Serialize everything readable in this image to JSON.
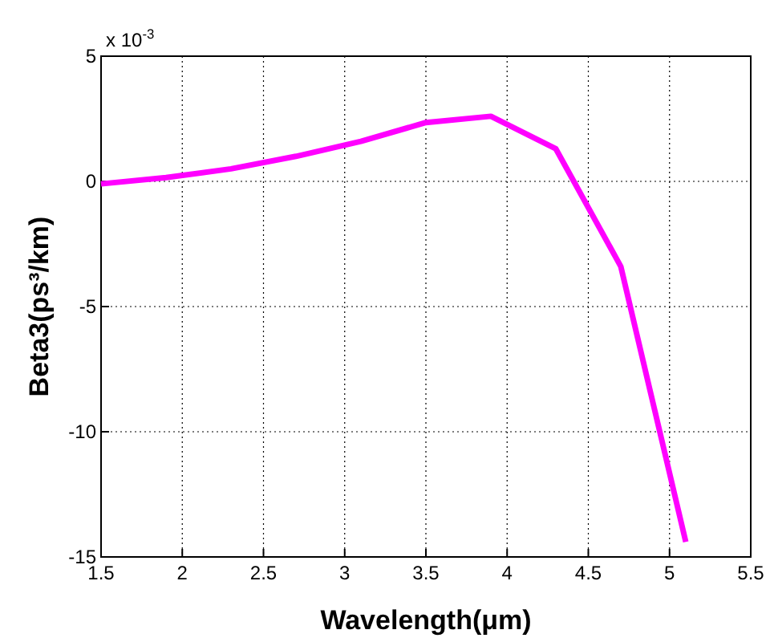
{
  "chart_data": {
    "type": "line",
    "xlabel": "Wavelength(μm)",
    "ylabel": "Beta3(ps³/km)",
    "annotations": [
      "x 10$^{-3}$"
    ],
    "x": [
      1.5,
      1.9,
      2.3,
      2.7,
      3.1,
      3.5,
      3.9,
      4.3,
      4.7,
      5.1
    ],
    "series": [
      {
        "color": "#ff00ff",
        "values": [
          -0.1,
          0.15,
          0.5,
          1.0,
          1.6,
          2.35,
          2.6,
          1.3,
          -3.4,
          -14.4
        ]
      }
    ],
    "xlim": [
      1.5,
      5.5
    ],
    "xticks": [
      1.5,
      2,
      2.5,
      3,
      3.5,
      4,
      4.5,
      5,
      5.5
    ],
    "ylim": [
      -15,
      5
    ],
    "yticks": [
      -15,
      -10,
      -5,
      0,
      5
    ],
    "grid": true,
    "line_style": "solid",
    "marker": "none"
  }
}
